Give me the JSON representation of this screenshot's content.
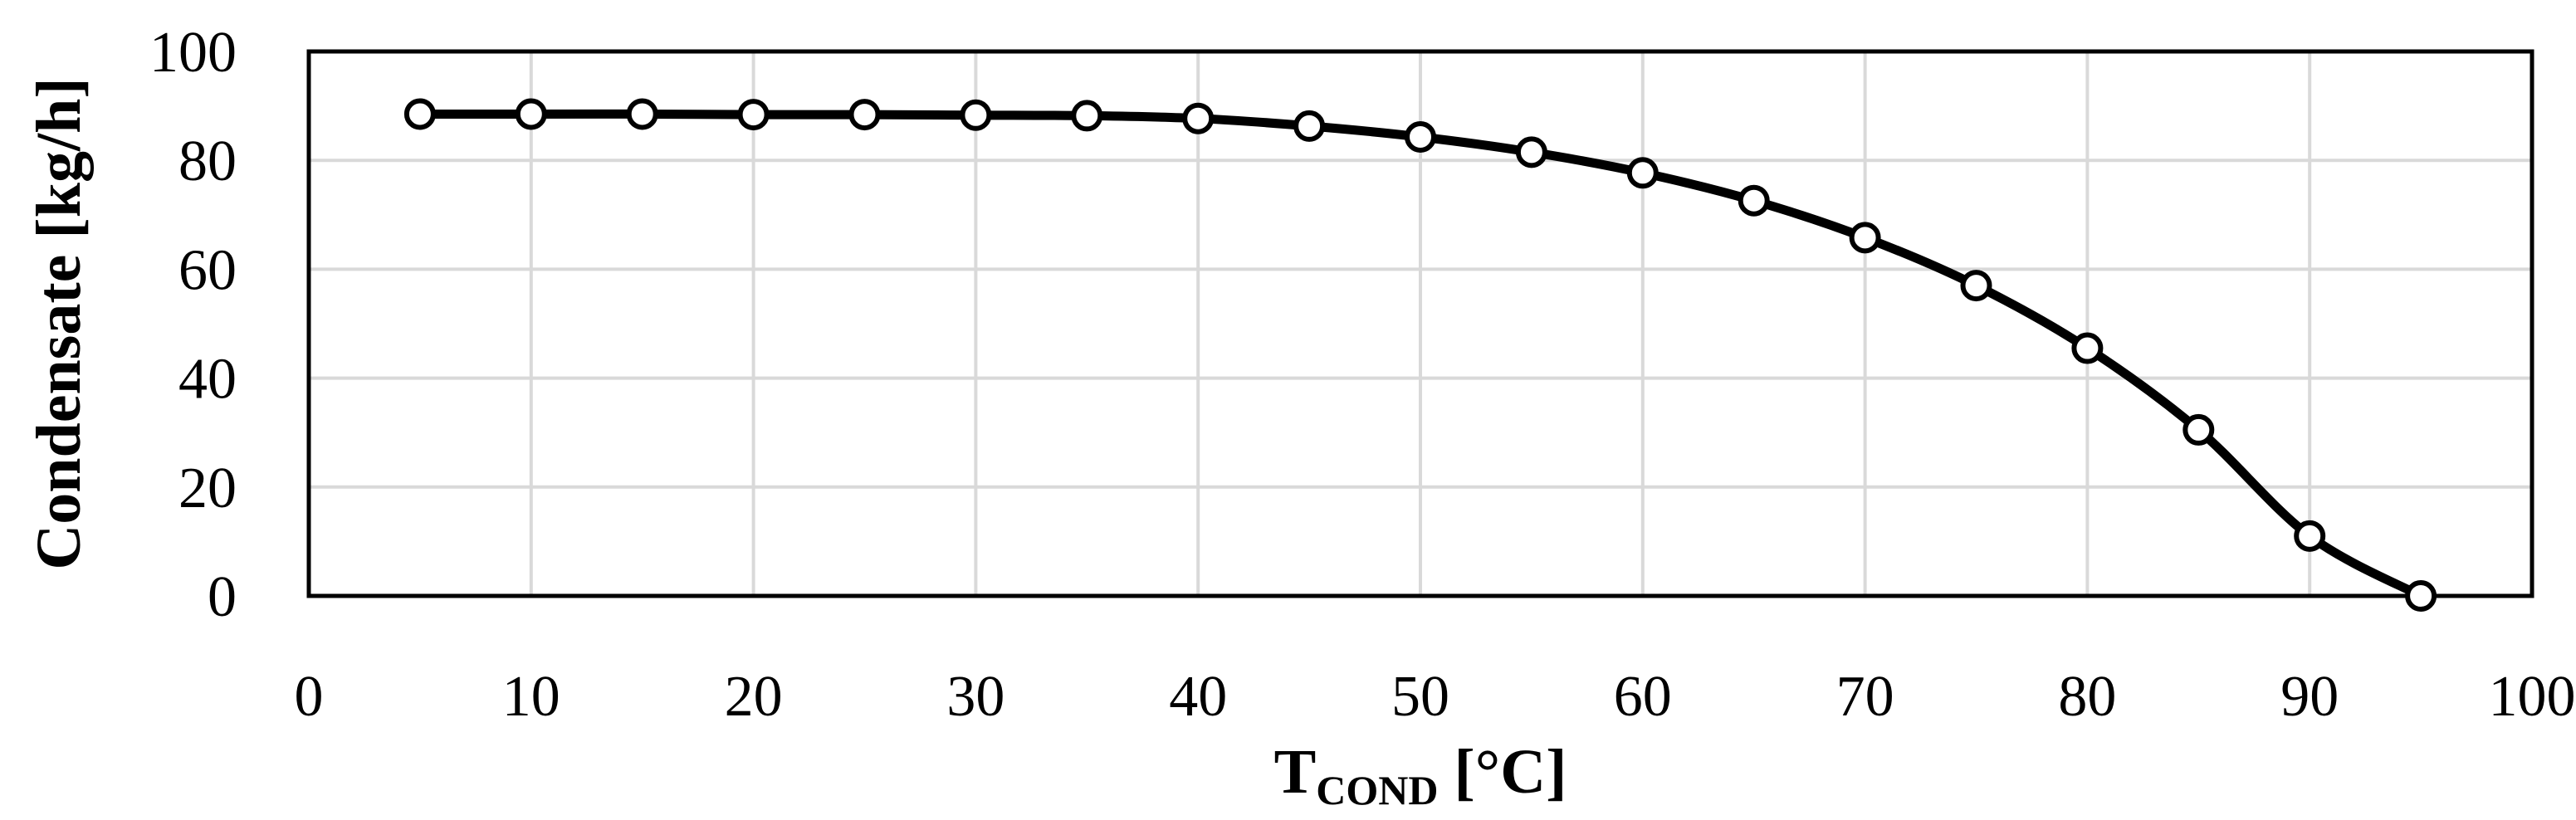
{
  "chart_data": {
    "type": "line",
    "title": "",
    "xlabel": {
      "main": "T",
      "subscript": "COND",
      "unit": " [°C]"
    },
    "ylabel": "Condensate [kg/h]",
    "xlim": [
      0,
      100
    ],
    "ylim": [
      0,
      100
    ],
    "x_ticks": [
      "0",
      "10",
      "20",
      "30",
      "40",
      "50",
      "60",
      "70",
      "80",
      "90",
      "100"
    ],
    "y_ticks": [
      "0",
      "20",
      "40",
      "60",
      "80",
      "100"
    ],
    "grid": true,
    "legend": "none",
    "marker": "open-circle",
    "line_color": "#000000",
    "grid_color": "#d9d9d9",
    "series": [
      {
        "x": [
          5,
          10,
          15,
          20,
          25,
          30,
          35,
          40,
          45,
          50,
          55,
          60,
          65,
          70,
          75,
          80,
          85,
          90,
          95
        ],
        "y": [
          88.5,
          88.5,
          88.5,
          88.4,
          88.4,
          88.3,
          88.2,
          87.7,
          86.3,
          84.3,
          81.5,
          77.7,
          72.6,
          65.8,
          57.0,
          45.5,
          30.5,
          11.0,
          0.0
        ]
      }
    ]
  }
}
